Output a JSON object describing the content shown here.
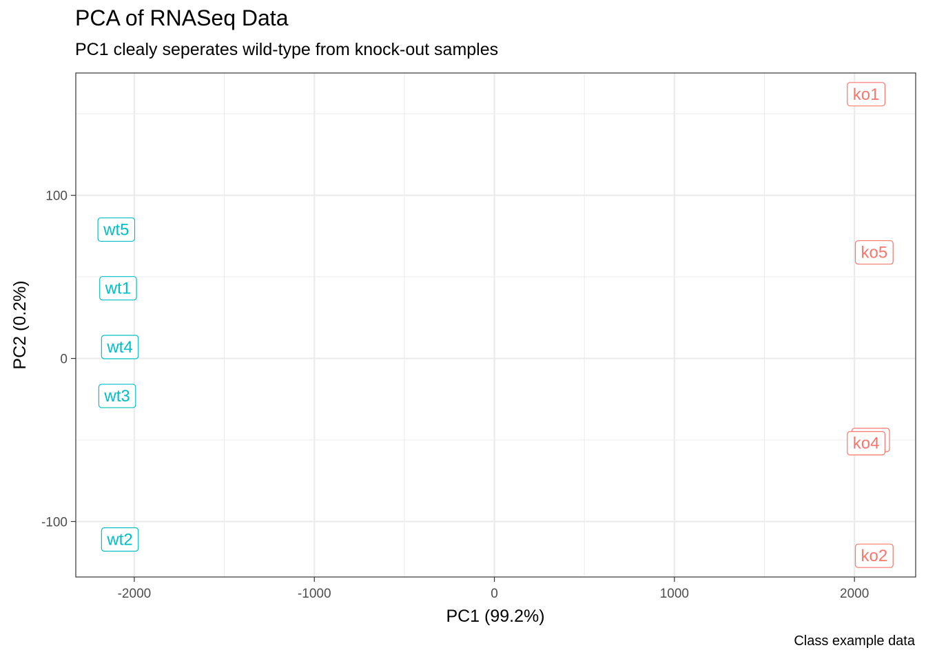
{
  "chart_data": {
    "type": "scatter",
    "title": "PCA of RNASeq Data",
    "subtitle": "PC1 clealy seperates wild-type from knock-out samples",
    "caption": "Class example data",
    "xlabel": "PC1 (99.2%)",
    "ylabel": "PC2 (0.2%)",
    "xlim": [
      -2325,
      2340
    ],
    "ylim": [
      -134,
      175
    ],
    "x_ticks": [
      -2000,
      -1000,
      0,
      1000,
      2000
    ],
    "x_tick_labels": [
      "-2000",
      "-1000",
      "0",
      "1000",
      "2000"
    ],
    "y_ticks": [
      -100,
      0,
      100
    ],
    "y_tick_labels": [
      "-100",
      "0",
      "100"
    ],
    "grid": true,
    "label_style": "boxed text labels",
    "groups": [
      {
        "color": "#00BFC4"
      },
      {
        "color": "#F8766D"
      }
    ],
    "points": [
      {
        "label": "wt5",
        "x": -2100,
        "y": 79,
        "group": 0
      },
      {
        "label": "wt1",
        "x": -2090,
        "y": 43,
        "group": 0
      },
      {
        "label": "wt4",
        "x": -2080,
        "y": 7,
        "group": 0
      },
      {
        "label": "wt3",
        "x": -2095,
        "y": -23,
        "group": 0
      },
      {
        "label": "wt2",
        "x": -2080,
        "y": -111,
        "group": 0
      },
      {
        "label": "ko1",
        "x": 2065,
        "y": 162,
        "group": 1
      },
      {
        "label": "ko5",
        "x": 2110,
        "y": 65,
        "group": 1
      },
      {
        "label": "ko3",
        "x": 2090,
        "y": -50,
        "group": 1
      },
      {
        "label": "ko4",
        "x": 2065,
        "y": -52,
        "group": 1
      },
      {
        "label": "ko2",
        "x": 2110,
        "y": -121,
        "group": 1
      }
    ]
  }
}
